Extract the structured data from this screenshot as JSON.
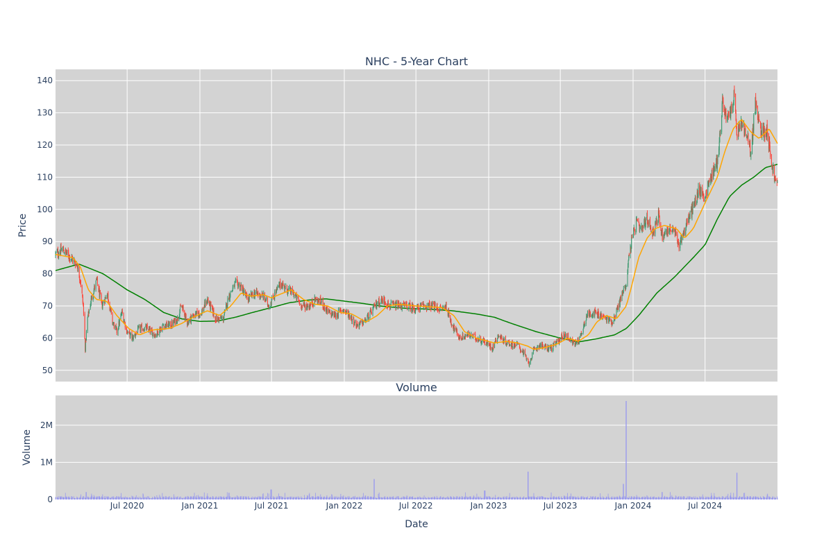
{
  "chart_data": [
    {
      "type": "candlestick",
      "title": "NHC - 5-Year Chart",
      "ylabel": "Price",
      "ylim": [
        46.5,
        143.5
      ],
      "yticks": [
        50,
        60,
        70,
        80,
        90,
        100,
        110,
        120,
        130,
        140
      ],
      "grid": true,
      "colors": {
        "up": "#3d9970",
        "down": "#ff4136",
        "sma50": "#ffa500",
        "sma200": "#008000",
        "background": "#d3d3d3",
        "grid": "#ffffff"
      },
      "price_anchors": [
        [
          "2020-01-02",
          86
        ],
        [
          "2020-01-20",
          87.5
        ],
        [
          "2020-02-10",
          85
        ],
        [
          "2020-02-25",
          83
        ],
        [
          "2020-03-05",
          78
        ],
        [
          "2020-03-12",
          70
        ],
        [
          "2020-03-17",
          57
        ],
        [
          "2020-03-23",
          66
        ],
        [
          "2020-04-01",
          72
        ],
        [
          "2020-04-15",
          78
        ],
        [
          "2020-04-28",
          70
        ],
        [
          "2020-05-12",
          74
        ],
        [
          "2020-05-25",
          65
        ],
        [
          "2020-06-05",
          62
        ],
        [
          "2020-06-18",
          68
        ],
        [
          "2020-07-01",
          62
        ],
        [
          "2020-07-15",
          60
        ],
        [
          "2020-08-01",
          63
        ],
        [
          "2020-08-20",
          63
        ],
        [
          "2020-09-10",
          61
        ],
        [
          "2020-10-01",
          64
        ],
        [
          "2020-10-20",
          64
        ],
        [
          "2020-11-05",
          66
        ],
        [
          "2020-11-15",
          70
        ],
        [
          "2020-11-30",
          65
        ],
        [
          "2020-12-15",
          67
        ],
        [
          "2021-01-05",
          68
        ],
        [
          "2021-01-20",
          72
        ],
        [
          "2021-02-10",
          66
        ],
        [
          "2021-03-01",
          66
        ],
        [
          "2021-03-15",
          73
        ],
        [
          "2021-04-01",
          77
        ],
        [
          "2021-04-15",
          76
        ],
        [
          "2021-05-01",
          72
        ],
        [
          "2021-05-20",
          74
        ],
        [
          "2021-06-10",
          73
        ],
        [
          "2021-06-25",
          70
        ],
        [
          "2021-07-10",
          74
        ],
        [
          "2021-07-25",
          77
        ],
        [
          "2021-08-10",
          75
        ],
        [
          "2021-08-25",
          74
        ],
        [
          "2021-09-15",
          70
        ],
        [
          "2021-10-05",
          70
        ],
        [
          "2021-10-20",
          72
        ],
        [
          "2021-11-05",
          71
        ],
        [
          "2021-11-20",
          68
        ],
        [
          "2021-12-10",
          67
        ],
        [
          "2021-12-28",
          69
        ],
        [
          "2022-01-15",
          67
        ],
        [
          "2022-02-01",
          64
        ],
        [
          "2022-02-20",
          65
        ],
        [
          "2022-03-10",
          68
        ],
        [
          "2022-03-25",
          71
        ],
        [
          "2022-04-10",
          72
        ],
        [
          "2022-04-25",
          70
        ],
        [
          "2022-05-15",
          70
        ],
        [
          "2022-06-10",
          70
        ],
        [
          "2022-07-01",
          69
        ],
        [
          "2022-07-20",
          70
        ],
        [
          "2022-08-10",
          70
        ],
        [
          "2022-09-01",
          69
        ],
        [
          "2022-09-15",
          70
        ],
        [
          "2022-10-01",
          64
        ],
        [
          "2022-10-20",
          60
        ],
        [
          "2022-11-10",
          61
        ],
        [
          "2022-12-01",
          60
        ],
        [
          "2022-12-20",
          59
        ],
        [
          "2023-01-10",
          57
        ],
        [
          "2023-01-25",
          61
        ],
        [
          "2023-02-10",
          59
        ],
        [
          "2023-03-01",
          58
        ],
        [
          "2023-03-15",
          58
        ],
        [
          "2023-04-01",
          55
        ],
        [
          "2023-04-12",
          52
        ],
        [
          "2023-04-25",
          56
        ],
        [
          "2023-05-10",
          58
        ],
        [
          "2023-05-25",
          57
        ],
        [
          "2023-06-10",
          57
        ],
        [
          "2023-06-25",
          59
        ],
        [
          "2023-07-10",
          61
        ],
        [
          "2023-07-25",
          60
        ],
        [
          "2023-08-05",
          58
        ],
        [
          "2023-08-20",
          60
        ],
        [
          "2023-09-05",
          67
        ],
        [
          "2023-09-20",
          68
        ],
        [
          "2023-10-10",
          67
        ],
        [
          "2023-10-25",
          66
        ],
        [
          "2023-11-10",
          65
        ],
        [
          "2023-11-25",
          70
        ],
        [
          "2023-12-05",
          74
        ],
        [
          "2023-12-15",
          77
        ],
        [
          "2023-12-20",
          84
        ],
        [
          "2023-12-28",
          90
        ],
        [
          "2024-01-10",
          96
        ],
        [
          "2024-01-20",
          93
        ],
        [
          "2024-02-05",
          97
        ],
        [
          "2024-02-20",
          93
        ],
        [
          "2024-03-05",
          98
        ],
        [
          "2024-03-15",
          92
        ],
        [
          "2024-04-01",
          94
        ],
        [
          "2024-04-15",
          93
        ],
        [
          "2024-04-25",
          89
        ],
        [
          "2024-05-05",
          92
        ],
        [
          "2024-05-20",
          97
        ],
        [
          "2024-06-05",
          102
        ],
        [
          "2024-06-15",
          106
        ],
        [
          "2024-07-01",
          104
        ],
        [
          "2024-07-15",
          110
        ],
        [
          "2024-08-01",
          115
        ],
        [
          "2024-08-08",
          124
        ],
        [
          "2024-08-15",
          134
        ],
        [
          "2024-08-25",
          127
        ],
        [
          "2024-09-05",
          131
        ],
        [
          "2024-09-12",
          135
        ],
        [
          "2024-09-20",
          123
        ],
        [
          "2024-10-01",
          127
        ],
        [
          "2024-10-15",
          122
        ],
        [
          "2024-10-25",
          118
        ],
        [
          "2024-11-05",
          133
        ],
        [
          "2024-11-15",
          126
        ],
        [
          "2024-11-25",
          124
        ],
        [
          "2024-12-05",
          125
        ],
        [
          "2024-12-15",
          115
        ],
        [
          "2024-12-27",
          108
        ]
      ],
      "sma50_anchors": [
        [
          "2020-01-02",
          86
        ],
        [
          "2020-02-15",
          85
        ],
        [
          "2020-03-05",
          82
        ],
        [
          "2020-03-25",
          75
        ],
        [
          "2020-04-15",
          72
        ],
        [
          "2020-05-10",
          71.5
        ],
        [
          "2020-06-05",
          67
        ],
        [
          "2020-07-05",
          63
        ],
        [
          "2020-08-01",
          61
        ],
        [
          "2020-09-01",
          62.5
        ],
        [
          "2020-10-15",
          63
        ],
        [
          "2020-11-15",
          64.5
        ],
        [
          "2020-12-15",
          66.5
        ],
        [
          "2021-01-20",
          68.5
        ],
        [
          "2021-02-20",
          67
        ],
        [
          "2021-03-20",
          70
        ],
        [
          "2021-04-15",
          74
        ],
        [
          "2021-05-10",
          73
        ],
        [
          "2021-06-10",
          73.5
        ],
        [
          "2021-07-01",
          72.5
        ],
        [
          "2021-07-20",
          73.5
        ],
        [
          "2021-08-20",
          75
        ],
        [
          "2021-09-20",
          72
        ],
        [
          "2021-10-20",
          70.5
        ],
        [
          "2021-11-20",
          70
        ],
        [
          "2021-12-20",
          68
        ],
        [
          "2022-01-20",
          67.5
        ],
        [
          "2022-02-25",
          65
        ],
        [
          "2022-03-25",
          67
        ],
        [
          "2022-04-20",
          70
        ],
        [
          "2022-05-20",
          70.5
        ],
        [
          "2022-07-01",
          70
        ],
        [
          "2022-09-05",
          69.5
        ],
        [
          "2022-10-05",
          67
        ],
        [
          "2022-11-01",
          62
        ],
        [
          "2022-12-01",
          60
        ],
        [
          "2023-01-15",
          58.5
        ],
        [
          "2023-02-15",
          59
        ],
        [
          "2023-03-15",
          58.5
        ],
        [
          "2023-04-10",
          57.5
        ],
        [
          "2023-04-25",
          56.5
        ],
        [
          "2023-05-20",
          57
        ],
        [
          "2023-06-20",
          58
        ],
        [
          "2023-07-20",
          60
        ],
        [
          "2023-08-15",
          59
        ],
        [
          "2023-09-10",
          61
        ],
        [
          "2023-10-01",
          65
        ],
        [
          "2023-10-25",
          67
        ],
        [
          "2023-11-20",
          66
        ],
        [
          "2023-12-15",
          70
        ],
        [
          "2023-12-28",
          76
        ],
        [
          "2024-01-15",
          85
        ],
        [
          "2024-02-05",
          91
        ],
        [
          "2024-02-25",
          94
        ],
        [
          "2024-03-20",
          95
        ],
        [
          "2024-04-20",
          94
        ],
        [
          "2024-05-10",
          91
        ],
        [
          "2024-06-01",
          94
        ],
        [
          "2024-07-01",
          102
        ],
        [
          "2024-08-01",
          110
        ],
        [
          "2024-08-20",
          118
        ],
        [
          "2024-09-10",
          125
        ],
        [
          "2024-10-01",
          128
        ],
        [
          "2024-10-25",
          124
        ],
        [
          "2024-11-15",
          122
        ],
        [
          "2024-12-10",
          125
        ],
        [
          "2024-12-31",
          120.5
        ]
      ],
      "sma200_anchors": [
        [
          "2020-01-02",
          81
        ],
        [
          "2020-02-15",
          82.5
        ],
        [
          "2020-03-01",
          83
        ],
        [
          "2020-04-01",
          81.5
        ],
        [
          "2020-05-01",
          80
        ],
        [
          "2020-06-01",
          77.5
        ],
        [
          "2020-07-01",
          75
        ],
        [
          "2020-08-15",
          72
        ],
        [
          "2020-10-01",
          68
        ],
        [
          "2020-11-15",
          66
        ],
        [
          "2021-01-01",
          65.2
        ],
        [
          "2021-02-15",
          65.3
        ],
        [
          "2021-04-01",
          66.5
        ],
        [
          "2021-05-15",
          68
        ],
        [
          "2021-07-01",
          69.5
        ],
        [
          "2021-08-15",
          71
        ],
        [
          "2021-10-01",
          71.8
        ],
        [
          "2021-11-15",
          72.2
        ],
        [
          "2022-01-01",
          71.5
        ],
        [
          "2022-02-15",
          70.8
        ],
        [
          "2022-04-01",
          70
        ],
        [
          "2022-06-01",
          69.3
        ],
        [
          "2022-08-01",
          69
        ],
        [
          "2022-10-01",
          68.5
        ],
        [
          "2022-12-01",
          67.5
        ],
        [
          "2023-01-15",
          66.5
        ],
        [
          "2023-03-01",
          64.5
        ],
        [
          "2023-05-01",
          62
        ],
        [
          "2023-07-01",
          60
        ],
        [
          "2023-08-15",
          58.8
        ],
        [
          "2023-10-01",
          59.8
        ],
        [
          "2023-11-15",
          61
        ],
        [
          "2023-12-15",
          63
        ],
        [
          "2024-01-15",
          67
        ],
        [
          "2024-03-01",
          74
        ],
        [
          "2024-04-15",
          79
        ],
        [
          "2024-06-01",
          85
        ],
        [
          "2024-07-01",
          89
        ],
        [
          "2024-08-01",
          97
        ],
        [
          "2024-09-01",
          104
        ],
        [
          "2024-10-01",
          107.5
        ],
        [
          "2024-11-01",
          110
        ],
        [
          "2024-12-01",
          113
        ],
        [
          "2024-12-31",
          114
        ]
      ]
    },
    {
      "type": "bar",
      "title": "Volume",
      "xlabel": "Date",
      "ylabel": "Volume",
      "ylim": [
        0,
        2800000
      ],
      "ytick_values": [
        0,
        1000000,
        2000000
      ],
      "ytick_labels": [
        "0",
        "1M",
        "2M"
      ],
      "color": "#9999ee",
      "xlim": [
        "2020-01-02",
        "2024-12-31"
      ],
      "xtick_dates": [
        "2020-07-01",
        "2021-01-01",
        "2021-07-01",
        "2022-01-01",
        "2022-07-01",
        "2023-01-01",
        "2023-07-01",
        "2024-01-01",
        "2024-07-01"
      ],
      "xtick_labels": [
        "Jul 2020",
        "Jan 2021",
        "Jul 2021",
        "Jan 2022",
        "Jul 2022",
        "Jan 2023",
        "Jul 2023",
        "Jan 2024",
        "Jul 2024"
      ],
      "baseline": 60000,
      "spikes": [
        [
          "2020-03-20",
          200000
        ],
        [
          "2021-03-15",
          180000
        ],
        [
          "2021-06-30",
          270000
        ],
        [
          "2022-03-18",
          550000
        ],
        [
          "2022-12-22",
          240000
        ],
        [
          "2023-04-10",
          750000
        ],
        [
          "2023-12-08",
          420000
        ],
        [
          "2023-12-15",
          2650000
        ],
        [
          "2024-03-15",
          200000
        ],
        [
          "2024-09-20",
          720000
        ]
      ]
    }
  ]
}
